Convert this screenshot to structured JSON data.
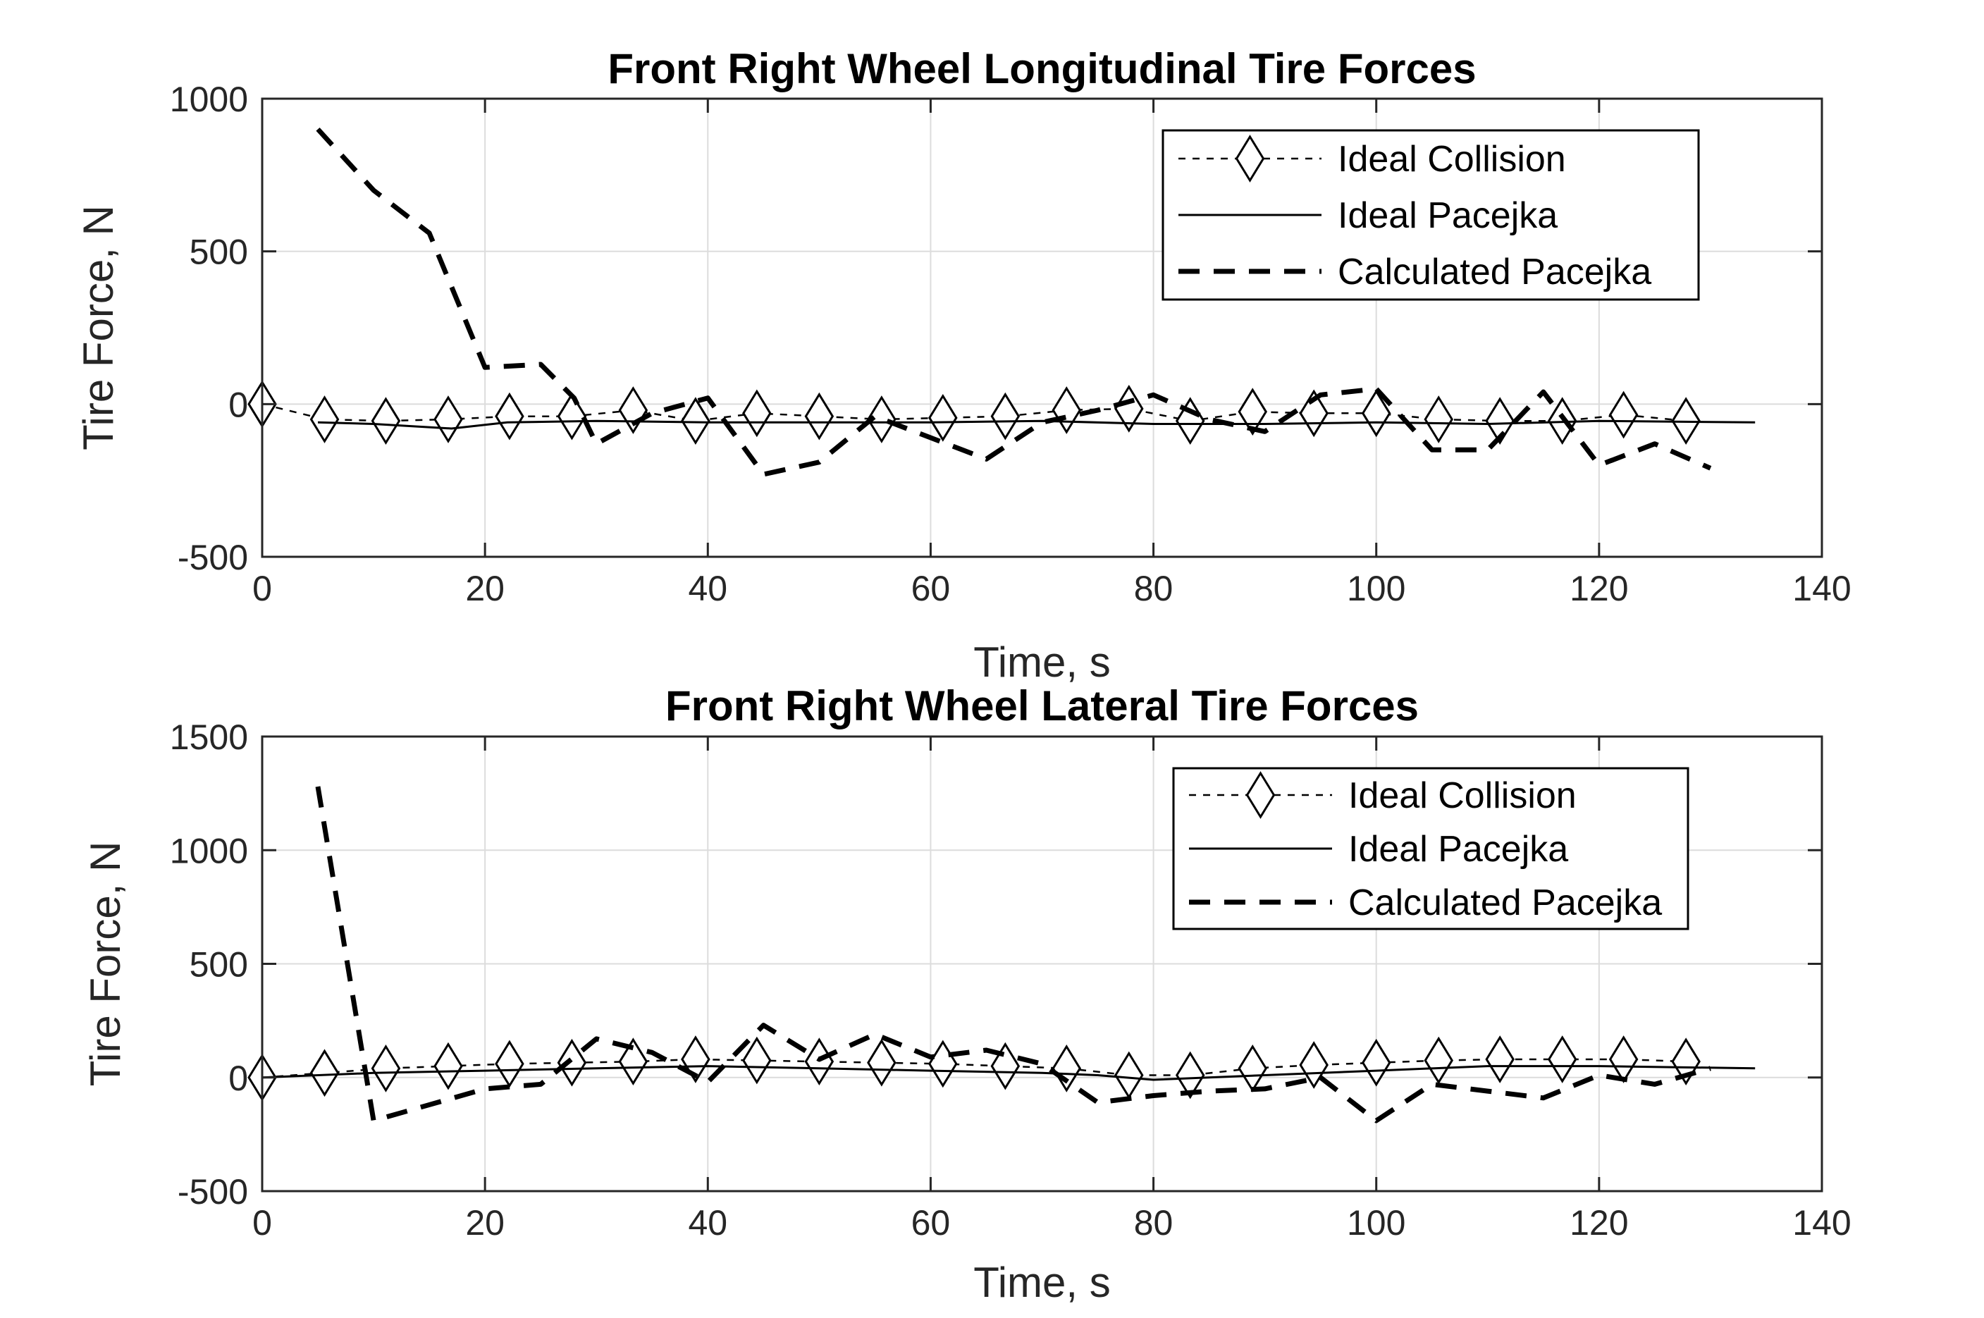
{
  "chart_data": [
    {
      "type": "line",
      "title": "Front Right Wheel Longitudinal Tire Forces",
      "xlabel": "Time, s",
      "ylabel": "Tire Force, N",
      "xlim": [
        0,
        140
      ],
      "ylim": [
        -500,
        1000
      ],
      "xticks": [
        0,
        20,
        40,
        60,
        80,
        100,
        120,
        140
      ],
      "yticks": [
        -500,
        0,
        500,
        1000
      ],
      "xtick_labels": [
        "0",
        "20",
        "40",
        "60",
        "80",
        "100",
        "120",
        "140"
      ],
      "ytick_labels": [
        "-500",
        "0",
        "500",
        "1000"
      ],
      "grid": true,
      "legend_position": "top-right",
      "series": [
        {
          "name": "Ideal Collision",
          "style": "dotted-diamond",
          "x": [
            0,
            5.6,
            11.1,
            16.7,
            22.2,
            27.8,
            33.3,
            38.9,
            44.4,
            50.0,
            55.6,
            61.1,
            66.7,
            72.2,
            77.8,
            83.3,
            88.9,
            94.4,
            100.0,
            105.6,
            111.1,
            116.7,
            122.2,
            127.8
          ],
          "y": [
            0,
            -50,
            -55,
            -50,
            -40,
            -40,
            -20,
            -55,
            -30,
            -40,
            -50,
            -45,
            -40,
            -20,
            -15,
            -55,
            -25,
            -30,
            -30,
            -50,
            -55,
            -55,
            -35,
            -55
          ]
        },
        {
          "name": "Ideal Pacejka",
          "style": "solid",
          "x": [
            5,
            10,
            17,
            22,
            30,
            40,
            50,
            60,
            70,
            80,
            90,
            100,
            110,
            120,
            134
          ],
          "y": [
            -60,
            -65,
            -80,
            -60,
            -55,
            -60,
            -60,
            -60,
            -55,
            -65,
            -65,
            -60,
            -65,
            -55,
            -60
          ]
        },
        {
          "name": "Calculated Pacejka",
          "style": "dashed",
          "x": [
            5,
            10,
            15,
            20,
            25,
            28,
            30,
            35,
            40,
            45,
            50,
            55,
            60,
            65,
            70,
            75,
            80,
            85,
            90,
            95,
            100,
            105,
            110,
            115,
            120,
            125,
            130
          ],
          "y": [
            900,
            700,
            560,
            120,
            130,
            20,
            -130,
            -30,
            20,
            -230,
            -190,
            -40,
            -110,
            -180,
            -60,
            -20,
            30,
            -50,
            -90,
            30,
            50,
            -150,
            -150,
            40,
            -200,
            -130,
            -210
          ]
        }
      ]
    },
    {
      "type": "line",
      "title": "Front Right Wheel Lateral Tire Forces",
      "xlabel": "Time, s",
      "ylabel": "Tire Force, N",
      "xlim": [
        0,
        140
      ],
      "ylim": [
        -500,
        1500
      ],
      "xticks": [
        0,
        20,
        40,
        60,
        80,
        100,
        120,
        140
      ],
      "yticks": [
        -500,
        0,
        500,
        1000,
        1500
      ],
      "xtick_labels": [
        "0",
        "20",
        "40",
        "60",
        "80",
        "100",
        "120",
        "140"
      ],
      "ytick_labels": [
        "-500",
        "0",
        "500",
        "1000",
        "1500"
      ],
      "grid": true,
      "legend_position": "top-right",
      "series": [
        {
          "name": "Ideal Collision",
          "style": "dotted-diamond",
          "x": [
            0,
            5.6,
            11.1,
            16.7,
            22.2,
            27.8,
            33.3,
            38.9,
            44.4,
            50.0,
            55.6,
            61.1,
            66.7,
            72.2,
            77.8,
            83.3,
            88.9,
            94.4,
            100.0,
            105.6,
            111.1,
            116.7,
            122.2,
            127.8
          ],
          "y": [
            0,
            20,
            40,
            50,
            60,
            65,
            70,
            80,
            75,
            70,
            65,
            60,
            50,
            40,
            10,
            10,
            40,
            55,
            65,
            75,
            80,
            80,
            80,
            70
          ]
        },
        {
          "name": "Ideal Pacejka",
          "style": "solid",
          "x": [
            0,
            10,
            20,
            30,
            40,
            50,
            60,
            70,
            75,
            80,
            90,
            100,
            110,
            120,
            134
          ],
          "y": [
            0,
            20,
            30,
            40,
            50,
            40,
            30,
            20,
            10,
            -10,
            10,
            30,
            50,
            50,
            40
          ]
        },
        {
          "name": "Calculated Pacejka",
          "style": "dashed",
          "x": [
            5,
            10,
            20,
            25,
            30,
            35,
            40,
            45,
            50,
            55,
            60,
            65,
            70,
            75,
            80,
            85,
            90,
            95,
            100,
            105,
            110,
            115,
            120,
            125,
            130
          ],
          "y": [
            1280,
            -190,
            -50,
            -30,
            170,
            110,
            -20,
            230,
            80,
            190,
            90,
            120,
            60,
            -110,
            -80,
            -60,
            -50,
            0,
            -190,
            -30,
            -60,
            -90,
            10,
            -30,
            40
          ]
        }
      ]
    }
  ]
}
